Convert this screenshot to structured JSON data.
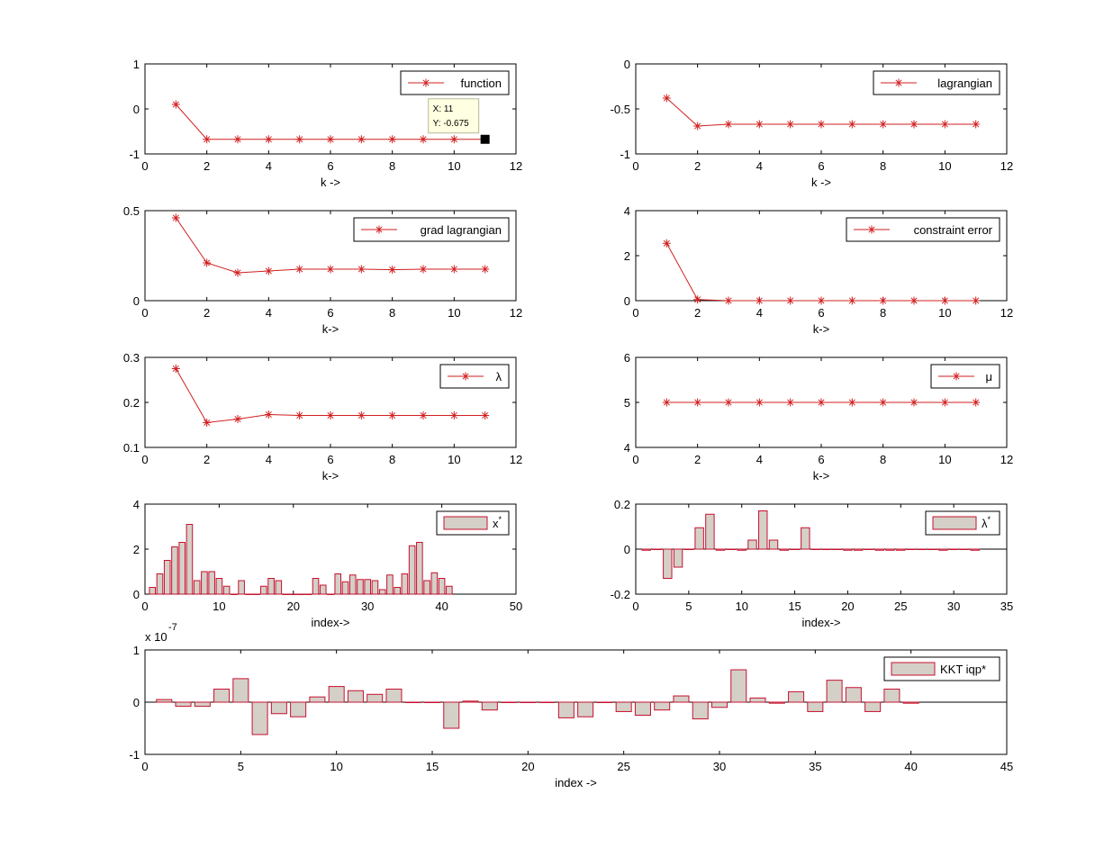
{
  "colors": {
    "line": "#d11f1f",
    "bar_fill": "#d4d0c8",
    "bar_edge": "#c8102e",
    "axis": "#000000",
    "datatip_bg": "#ffffe1"
  },
  "chart_data": [
    {
      "id": "function",
      "type": "line",
      "x": [
        1,
        2,
        3,
        4,
        5,
        6,
        7,
        8,
        9,
        10,
        11
      ],
      "y": [
        0.1,
        -0.675,
        -0.675,
        -0.675,
        -0.675,
        -0.675,
        -0.675,
        -0.675,
        -0.675,
        -0.675,
        -0.675
      ],
      "xlim": [
        0,
        12
      ],
      "ylim": [
        -1,
        1
      ],
      "xticks": [
        "0",
        "2",
        "4",
        "6",
        "8",
        "10",
        "12"
      ],
      "yticks": [
        "-1",
        "0",
        "1"
      ],
      "xlabel": "k ->",
      "legend": "function",
      "datatip": {
        "x_text": "X: 11",
        "y_text": "Y: -0.675",
        "x": 11,
        "y": -0.675
      }
    },
    {
      "id": "lagrangian",
      "type": "line",
      "x": [
        1,
        2,
        3,
        4,
        5,
        6,
        7,
        8,
        9,
        10,
        11
      ],
      "y": [
        -0.38,
        -0.69,
        -0.67,
        -0.67,
        -0.67,
        -0.67,
        -0.67,
        -0.67,
        -0.67,
        -0.67,
        -0.67
      ],
      "xlim": [
        0,
        12
      ],
      "ylim": [
        -1,
        0
      ],
      "xticks": [
        "0",
        "2",
        "4",
        "6",
        "8",
        "10",
        "12"
      ],
      "yticks": [
        "-1",
        "-0.5",
        "0"
      ],
      "xlabel": "k ->",
      "legend": "lagrangian"
    },
    {
      "id": "grad-lagrangian",
      "type": "line",
      "x": [
        1,
        2,
        3,
        4,
        5,
        6,
        7,
        8,
        9,
        10,
        11
      ],
      "y": [
        0.46,
        0.21,
        0.155,
        0.165,
        0.175,
        0.175,
        0.175,
        0.172,
        0.175,
        0.175,
        0.175
      ],
      "xlim": [
        0,
        12
      ],
      "ylim": [
        0,
        0.5
      ],
      "xticks": [
        "0",
        "2",
        "4",
        "6",
        "8",
        "10",
        "12"
      ],
      "yticks": [
        "0",
        "0.5"
      ],
      "xlabel": "k->",
      "legend": "grad lagrangian"
    },
    {
      "id": "constraint-error",
      "type": "line",
      "x": [
        1,
        2,
        3,
        4,
        5,
        6,
        7,
        8,
        9,
        10,
        11
      ],
      "y": [
        2.55,
        0.05,
        0,
        0,
        0,
        0,
        0,
        0,
        0,
        0,
        0
      ],
      "xlim": [
        0,
        12
      ],
      "ylim": [
        0,
        4
      ],
      "xticks": [
        "0",
        "2",
        "4",
        "6",
        "8",
        "10",
        "12"
      ],
      "yticks": [
        "0",
        "2",
        "4"
      ],
      "xlabel": "k->",
      "legend": "constraint error"
    },
    {
      "id": "lambda",
      "type": "line",
      "x": [
        1,
        2,
        3,
        4,
        5,
        6,
        7,
        8,
        9,
        10,
        11
      ],
      "y": [
        0.275,
        0.155,
        0.163,
        0.173,
        0.171,
        0.171,
        0.171,
        0.171,
        0.171,
        0.171,
        0.171
      ],
      "xlim": [
        0,
        12
      ],
      "ylim": [
        0.1,
        0.3
      ],
      "xticks": [
        "0",
        "2",
        "4",
        "6",
        "8",
        "10",
        "12"
      ],
      "yticks": [
        "0.1",
        "0.2",
        "0.3"
      ],
      "xlabel": "k->",
      "legend": "λ"
    },
    {
      "id": "mu",
      "type": "line",
      "x": [
        1,
        2,
        3,
        4,
        5,
        6,
        7,
        8,
        9,
        10,
        11
      ],
      "y": [
        5,
        5,
        5,
        5,
        5,
        5,
        5,
        5,
        5,
        5,
        5
      ],
      "xlim": [
        0,
        12
      ],
      "ylim": [
        4,
        6
      ],
      "xticks": [
        "0",
        "2",
        "4",
        "6",
        "8",
        "10",
        "12"
      ],
      "yticks": [
        "4",
        "5",
        "6"
      ],
      "xlabel": "k->",
      "legend": "μ"
    },
    {
      "id": "x-star",
      "type": "bar",
      "values": [
        0.3,
        0.9,
        1.5,
        2.1,
        2.3,
        3.1,
        0.6,
        1.0,
        1.0,
        0.7,
        0.35,
        0.0,
        0.6,
        0.0,
        0.0,
        0.35,
        0.7,
        0.6,
        0.0,
        0.0,
        0.0,
        0.0,
        0.7,
        0.4,
        0.0,
        0.9,
        0.55,
        0.85,
        0.65,
        0.65,
        0.6,
        0.2,
        0.85,
        0.3,
        0.9,
        2.15,
        2.3,
        0.6,
        0.95,
        0.7,
        0.35
      ],
      "xlim": [
        0,
        50
      ],
      "ylim": [
        0,
        4
      ],
      "xticks": [
        "0",
        "10",
        "20",
        "30",
        "40",
        "50"
      ],
      "yticks": [
        "0",
        "2",
        "4"
      ],
      "xlabel": "index->",
      "legend": "x",
      "legend_sup": "*"
    },
    {
      "id": "lambda-star",
      "type": "bar",
      "values": [
        -0.005,
        0.0,
        -0.13,
        -0.08,
        0.0,
        0.095,
        0.155,
        -0.005,
        0.0,
        -0.005,
        0.04,
        0.17,
        0.04,
        -0.005,
        0.0,
        0.095,
        0.0,
        0.0,
        0.0,
        -0.005,
        -0.005,
        0.0,
        -0.005,
        -0.005,
        -0.005,
        0.0,
        0.0,
        0.0,
        -0.005,
        0.0,
        0.0,
        -0.005
      ],
      "xlim": [
        0,
        35
      ],
      "ylim": [
        -0.2,
        0.2
      ],
      "xticks": [
        "0",
        "5",
        "10",
        "15",
        "20",
        "25",
        "30",
        "35"
      ],
      "yticks": [
        "-0.2",
        "0",
        "0.2"
      ],
      "xlabel": "index->",
      "legend": "λ",
      "legend_sup": "*"
    },
    {
      "id": "kkt-iqp",
      "type": "bar",
      "values": [
        0.05,
        -0.08,
        -0.08,
        0.25,
        0.45,
        -0.62,
        -0.22,
        -0.28,
        0.1,
        0.3,
        0.22,
        0.15,
        0.25,
        0.0,
        0.0,
        -0.5,
        0.02,
        -0.15,
        0.0,
        0.0,
        0.0,
        -0.3,
        -0.28,
        0.0,
        -0.18,
        -0.25,
        -0.15,
        0.12,
        -0.32,
        -0.1,
        0.62,
        0.08,
        -0.02,
        0.2,
        -0.18,
        0.42,
        0.28,
        -0.18,
        0.25,
        -0.02
      ],
      "xlim": [
        0,
        45
      ],
      "ylim": [
        -1,
        1
      ],
      "xticks": [
        "0",
        "5",
        "10",
        "15",
        "20",
        "25",
        "30",
        "35",
        "40",
        "45"
      ],
      "yticks": [
        "-1",
        "0",
        "1"
      ],
      "xlabel": "index ->",
      "legend": "KKT iqp*",
      "exponent_base": "x 10",
      "exponent_power": "-7"
    }
  ]
}
